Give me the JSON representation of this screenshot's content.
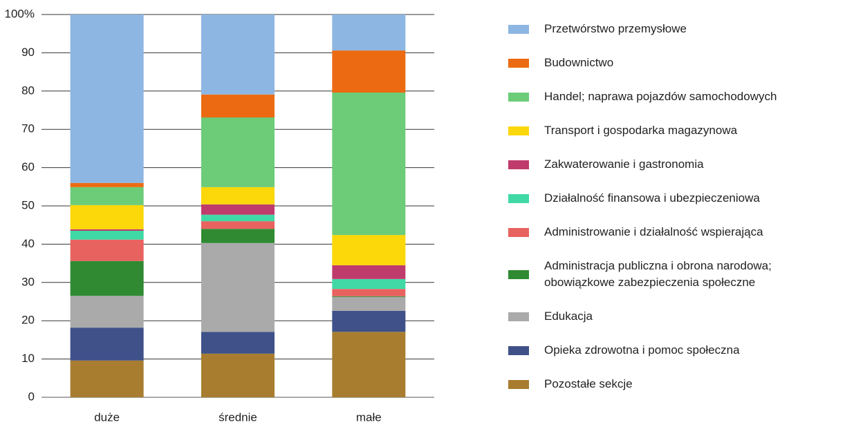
{
  "chart_data": {
    "type": "stacked-bar",
    "categories": [
      "duże",
      "średnie",
      "małe"
    ],
    "ylim": [
      0,
      100
    ],
    "yticks": [
      0,
      10,
      20,
      30,
      40,
      50,
      60,
      70,
      80,
      90,
      {
        "value": 100,
        "label": "100%"
      }
    ],
    "grid": true,
    "legend": "right",
    "series": [
      {
        "name": "Przetwórstwo przemysłowe",
        "color": "#8db6e2",
        "values": [
          44.0,
          20.9,
          9.4
        ]
      },
      {
        "name": "Budownictwo",
        "color": "#ec6b12",
        "values": [
          1.1,
          6.0,
          11.0
        ]
      },
      {
        "name": "Handel; naprawa pojazdów samochodowych",
        "color": "#6ccc78",
        "values": [
          4.7,
          18.2,
          37.2
        ]
      },
      {
        "name": "Transport i gospodarka magazynowa",
        "color": "#fcd70a",
        "values": [
          6.3,
          4.5,
          7.9
        ]
      },
      {
        "name": "Zakwaterowanie i gastronomia",
        "color": "#bf3b6b",
        "values": [
          0.4,
          2.7,
          3.6
        ]
      },
      {
        "name": "Działalność finansowa i ubezpieczeniowa",
        "color": "#40d9a6",
        "values": [
          2.3,
          1.7,
          2.6
        ]
      },
      {
        "name": "Administrowanie i działalność wspierająca",
        "color": "#e8625f",
        "values": [
          5.6,
          2.0,
          1.9
        ]
      },
      {
        "name": "Administracja publiczna i obrona narodowa; obowiązkowe zabezpieczenia społeczne",
        "color": "#2f8a32",
        "values": [
          9.1,
          3.7,
          0.2
        ]
      },
      {
        "name": "Edukacja",
        "color": "#aaaaaa",
        "values": [
          8.3,
          23.2,
          3.6
        ]
      },
      {
        "name": "Opieka zdrowotna i pomoc społeczna",
        "color": "#3f5188",
        "values": [
          8.6,
          5.7,
          5.5
        ]
      },
      {
        "name": "Pozostałe sekcje",
        "color": "#a87d30",
        "values": [
          9.6,
          11.4,
          17.1
        ]
      }
    ]
  }
}
